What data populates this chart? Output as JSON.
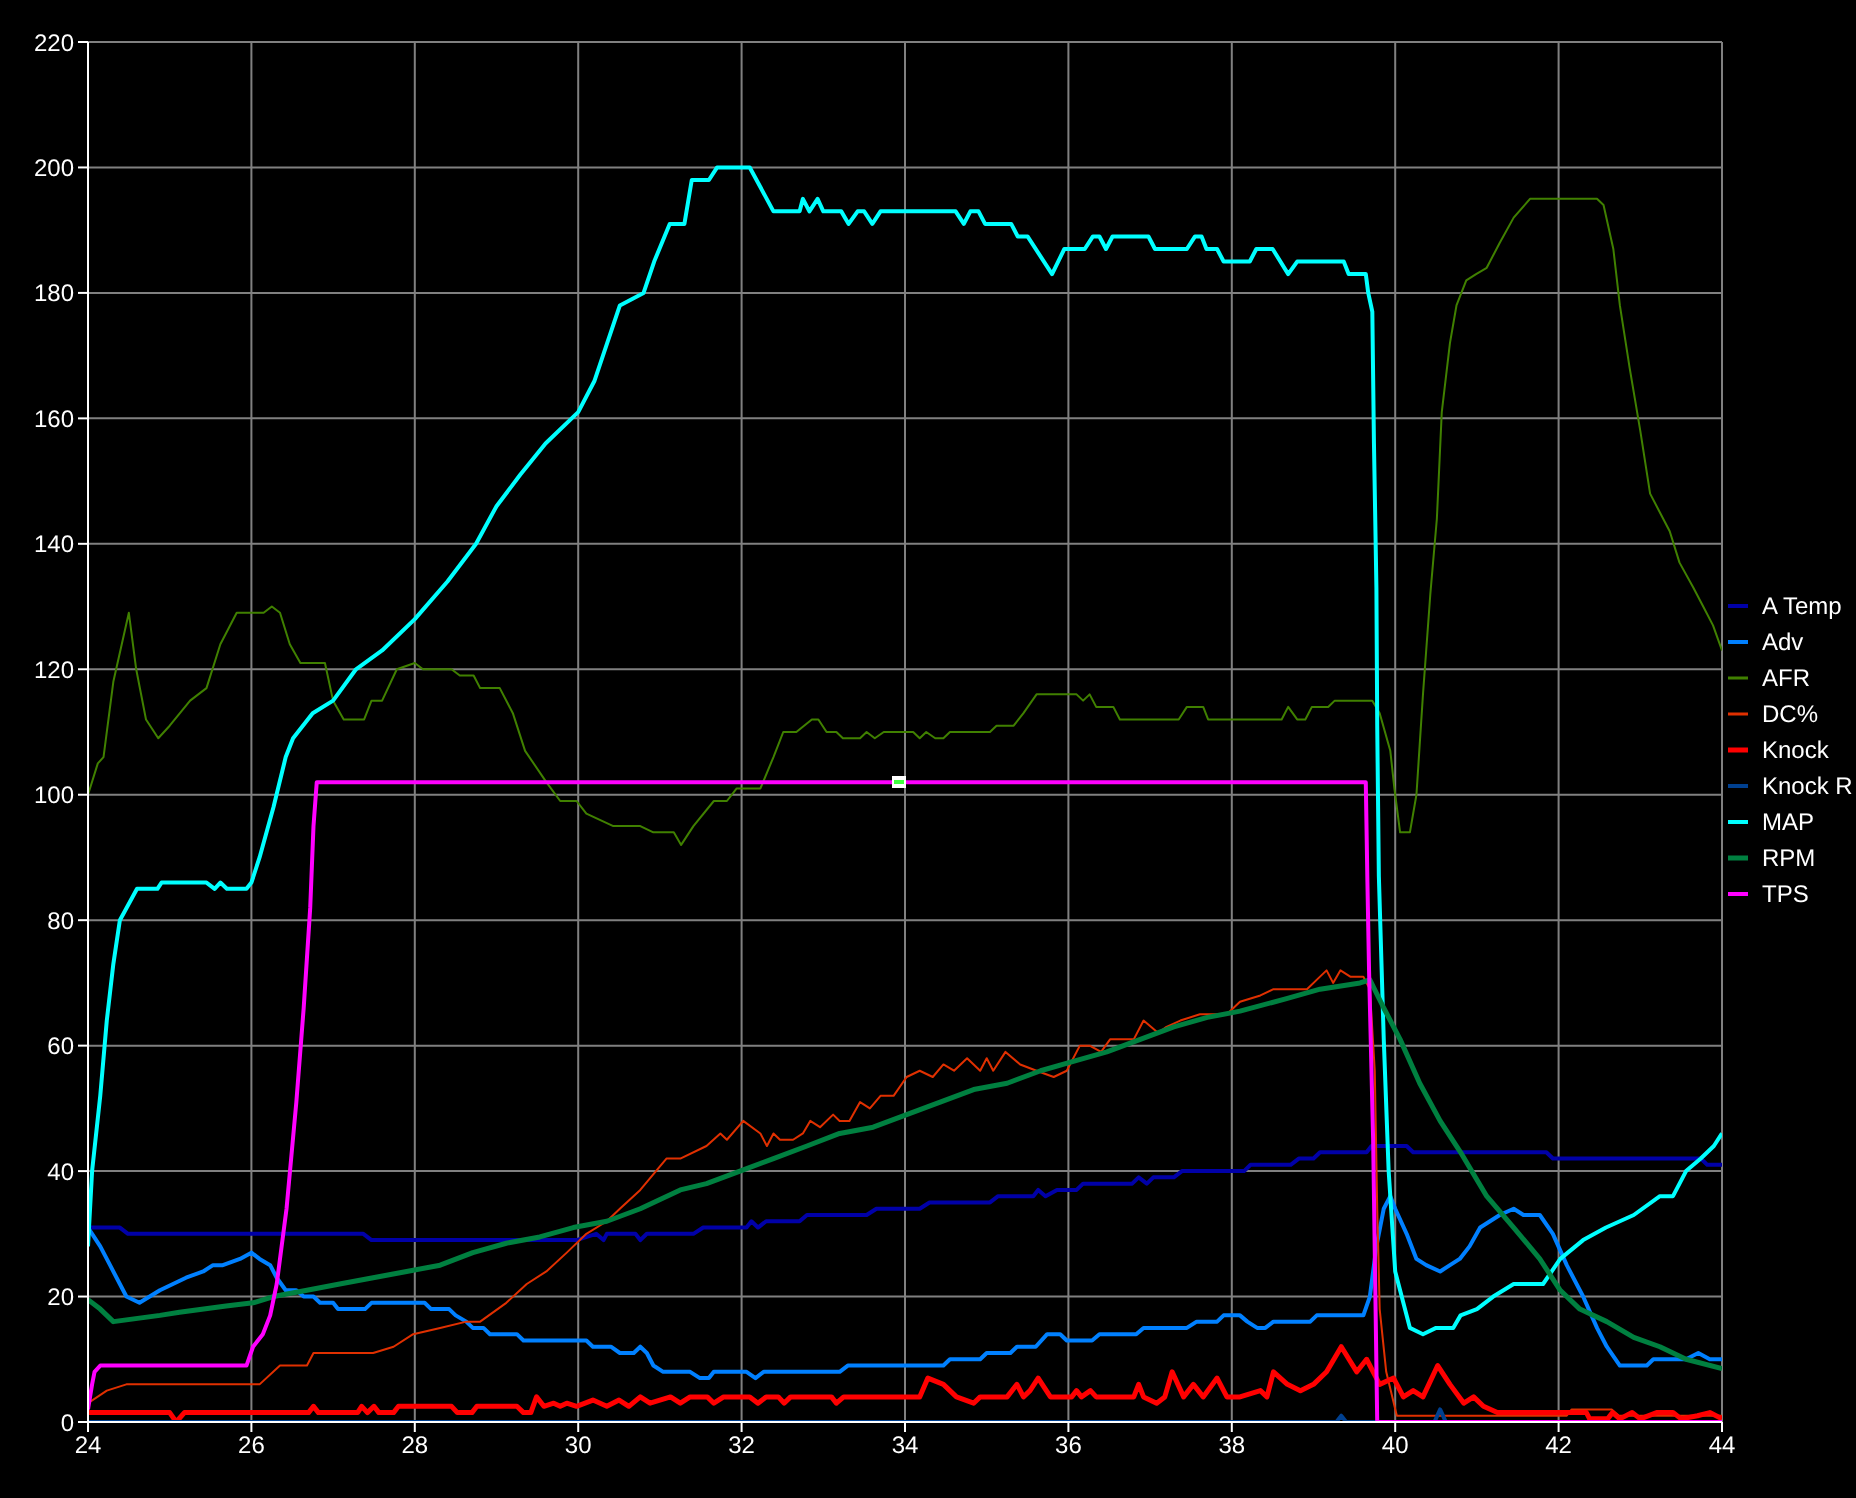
{
  "chart_data": {
    "type": "line",
    "xlim": [
      24,
      44
    ],
    "xticks": [
      24,
      26,
      28,
      30,
      32,
      34,
      36,
      38,
      40,
      42,
      44
    ],
    "ylim": [
      0,
      220
    ],
    "yticks": [
      0,
      20,
      40,
      60,
      80,
      100,
      120,
      140,
      160,
      180,
      200,
      220
    ],
    "grid": true,
    "legend": "right",
    "marker": "none",
    "line_style": "solid",
    "series": [
      {
        "name": "A Temp",
        "color": "#0000a8",
        "x": [
          24,
          24.39,
          24.49,
          27.37,
          27.47,
          29.98,
          30.22,
          30.31,
          30.35,
          30.7,
          30.76,
          30.84,
          31.41,
          31.53,
          32.06,
          32.12,
          32.2,
          32.3,
          32.71,
          32.8,
          33.53,
          33.65,
          34.18,
          34.3,
          35.04,
          35.14,
          35.57,
          35.63,
          35.72,
          35.86,
          36.1,
          36.18,
          36.78,
          36.86,
          36.96,
          37.04,
          37.29,
          37.39,
          38.15,
          38.23,
          38.72,
          38.82,
          39,
          39.08,
          39.65,
          39.71,
          40.14,
          40.22,
          41.85,
          41.93,
          43.74,
          43.82,
          44
        ],
        "values": [
          31,
          31,
          30,
          30,
          29,
          29,
          30,
          29,
          30,
          30,
          29,
          30,
          30,
          31,
          31,
          32,
          31,
          32,
          32,
          33,
          33,
          34,
          34,
          35,
          35,
          36,
          36,
          37,
          36,
          37,
          37,
          38,
          38,
          39,
          38,
          39,
          39,
          40,
          40,
          41,
          41,
          42,
          42,
          43,
          43,
          44,
          44,
          43,
          43,
          42,
          42,
          41,
          41
        ]
      },
      {
        "name": "Adv",
        "color": "#0080ff",
        "x": [
          24,
          24.15,
          24.27,
          24.39,
          24.47,
          24.63,
          24.88,
          25.04,
          25.2,
          25.41,
          25.53,
          25.65,
          25.86,
          26,
          26.1,
          26.23,
          26.31,
          26.42,
          26.55,
          26.64,
          26.76,
          26.84,
          27,
          27.06,
          27.39,
          27.47,
          28.12,
          28.2,
          28.42,
          28.5,
          28.63,
          28.71,
          28.84,
          28.92,
          29.25,
          29.33,
          30.1,
          30.18,
          30.4,
          30.51,
          30.68,
          30.76,
          30.84,
          30.92,
          31.04,
          31.37,
          31.49,
          31.6,
          31.66,
          32.06,
          32.17,
          32.27,
          33.2,
          33.3,
          34.47,
          34.55,
          34.92,
          35,
          35.29,
          35.37,
          35.6,
          35.74,
          35.9,
          35.98,
          36.29,
          36.38,
          36.83,
          36.92,
          37.45,
          37.57,
          37.82,
          37.9,
          38.1,
          38.19,
          38.31,
          38.41,
          38.51,
          38.96,
          39.04,
          39.61,
          39.69,
          39.77,
          39.86,
          39.94,
          40,
          40.14,
          40.26,
          40.38,
          40.55,
          40.67,
          40.79,
          40.91,
          41.04,
          41.28,
          41.45,
          41.57,
          41.77,
          41.93,
          42.1,
          42.3,
          42.47,
          42.59,
          42.75,
          43.08,
          43.16,
          43.56,
          43.71,
          43.85,
          44
        ],
        "values": [
          31,
          28,
          25,
          22,
          20,
          19,
          21,
          22,
          23,
          24,
          25,
          25,
          26,
          27,
          26,
          25,
          23,
          21,
          21,
          20,
          20,
          19,
          19,
          18,
          18,
          19,
          19,
          18,
          18,
          17,
          16,
          15,
          15,
          14,
          14,
          13,
          13,
          12,
          12,
          11,
          11,
          12,
          11,
          9,
          8,
          8,
          7,
          7,
          8,
          8,
          7,
          8,
          8,
          9,
          9,
          10,
          10,
          11,
          11,
          12,
          12,
          14,
          14,
          13,
          13,
          14,
          14,
          15,
          15,
          16,
          16,
          17,
          17,
          16,
          15,
          15,
          16,
          16,
          17,
          17,
          20,
          28,
          34,
          36,
          34,
          30,
          26,
          25,
          24,
          25,
          26,
          28,
          31,
          33,
          34,
          33,
          33,
          30,
          25,
          20,
          15,
          12,
          9,
          9,
          10,
          10,
          11,
          10,
          10
        ]
      },
      {
        "name": "AFR",
        "color": "#408000",
        "x": [
          24,
          24.12,
          24.19,
          24.31,
          24.5,
          24.59,
          24.71,
          24.86,
          25,
          25.25,
          25.45,
          25.62,
          25.82,
          26.15,
          26.25,
          26.35,
          26.47,
          26.6,
          26.9,
          27,
          27.13,
          27.38,
          27.47,
          27.6,
          27.78,
          28,
          28.1,
          28.45,
          28.55,
          28.72,
          28.8,
          29.04,
          29.2,
          29.35,
          29.61,
          29.78,
          29.98,
          30.1,
          30.43,
          30.76,
          30.92,
          31.17,
          31.26,
          31.41,
          31.66,
          31.82,
          31.94,
          32.23,
          32.39,
          32.51,
          32.67,
          32.86,
          32.94,
          33.04,
          33.16,
          33.24,
          33.45,
          33.53,
          33.63,
          33.74,
          34.1,
          34.18,
          34.26,
          34.37,
          34.47,
          34.55,
          35.04,
          35.12,
          35.33,
          35.45,
          35.61,
          36.1,
          36.18,
          36.26,
          36.34,
          36.55,
          36.63,
          37.35,
          37.45,
          37.65,
          37.71,
          38.61,
          38.69,
          38.8,
          38.9,
          38.98,
          39.18,
          39.26,
          39.72,
          39.81,
          39.94,
          39.99,
          40.06,
          40.18,
          40.26,
          40.34,
          40.43,
          40.51,
          40.57,
          40.67,
          40.75,
          40.87,
          40.99,
          41.12,
          41.28,
          41.45,
          41.65,
          42.47,
          42.55,
          42.67,
          42.75,
          42.87,
          43,
          43.12,
          43.24,
          43.36,
          43.48,
          43.65,
          43.77,
          43.89,
          44
        ],
        "values": [
          100,
          105,
          106,
          118,
          129,
          120,
          112,
          109,
          111,
          115,
          117,
          124,
          129,
          129,
          130,
          129,
          124,
          121,
          121,
          115,
          112,
          112,
          115,
          115,
          120,
          121,
          120,
          120,
          119,
          119,
          117,
          117,
          113,
          107,
          102,
          99,
          99,
          97,
          95,
          95,
          94,
          94,
          92,
          95,
          99,
          99,
          101,
          101,
          106,
          110,
          110,
          112,
          112,
          110,
          110,
          109,
          109,
          110,
          109,
          110,
          110,
          109,
          110,
          109,
          109,
          110,
          110,
          111,
          111,
          113,
          116,
          116,
          115,
          116,
          114,
          114,
          112,
          112,
          114,
          114,
          112,
          112,
          114,
          112,
          112,
          114,
          114,
          115,
          115,
          113,
          107,
          101,
          94,
          94,
          100,
          116,
          132,
          144,
          161,
          172,
          178,
          182,
          183,
          184,
          188,
          192,
          195,
          195,
          194,
          187,
          178,
          168,
          158,
          148,
          145,
          142,
          137,
          133,
          130,
          127,
          123
        ]
      },
      {
        "name": "DC%",
        "color": "#e03000",
        "x": [
          24,
          24.23,
          24.47,
          24.7,
          24.86,
          25.6,
          26.1,
          26.35,
          26.68,
          26.76,
          27.49,
          27.74,
          27.98,
          28.31,
          28.63,
          28.8,
          29.12,
          29.37,
          29.61,
          29.86,
          30.1,
          30.35,
          30.51,
          30.76,
          31.08,
          31.25,
          31.57,
          31.74,
          31.82,
          32.02,
          32.23,
          32.31,
          32.39,
          32.47,
          32.63,
          32.75,
          32.84,
          32.96,
          33.12,
          33.2,
          33.32,
          33.45,
          33.57,
          33.7,
          33.86,
          34.02,
          34.18,
          34.34,
          34.47,
          34.6,
          34.76,
          34.92,
          35,
          35.08,
          35.23,
          35.41,
          35.61,
          35.82,
          35.98,
          36.14,
          36.26,
          36.4,
          36.51,
          36.8,
          36.92,
          37.1,
          37.2,
          37.37,
          37.61,
          37.94,
          38.1,
          38.35,
          38.51,
          38.92,
          39.08,
          39.16,
          39.24,
          39.33,
          39.45,
          39.61,
          39.69,
          39.75,
          39.78,
          39.81,
          39.89,
          40.02,
          42.1,
          42.16,
          42.65,
          42.74,
          44
        ],
        "values": [
          3,
          5,
          6,
          6,
          6,
          6,
          6,
          9,
          9,
          11,
          11,
          12,
          14,
          15,
          16,
          16,
          19,
          22,
          24,
          27,
          30,
          32,
          34,
          37,
          42,
          42,
          44,
          46,
          45,
          48,
          46,
          44,
          46,
          45,
          45,
          46,
          48,
          47,
          49,
          48,
          48,
          51,
          50,
          52,
          52,
          55,
          56,
          55,
          57,
          56,
          58,
          56,
          58,
          56,
          59,
          57,
          56,
          55,
          56,
          60,
          60,
          59,
          61,
          61,
          64,
          62,
          63,
          64,
          65,
          65,
          67,
          68,
          69,
          69,
          71,
          72,
          70,
          72,
          71,
          71,
          69,
          56,
          34,
          18,
          8,
          1,
          1,
          2,
          2,
          1,
          1
        ]
      },
      {
        "name": "Knock",
        "color": "#ff0000",
        "x": [
          24,
          25,
          25.08,
          25.18,
          26.7,
          26.76,
          26.82,
          27.3,
          27.35,
          27.42,
          27.5,
          27.56,
          27.74,
          27.8,
          28.45,
          28.52,
          28.7,
          28.76,
          29.25,
          29.33,
          29.42,
          29.49,
          29.58,
          29.7,
          29.78,
          29.86,
          29.98,
          30.18,
          30.35,
          30.5,
          30.62,
          30.76,
          30.88,
          31.13,
          31.25,
          31.37,
          31.58,
          31.66,
          31.78,
          32.1,
          32.2,
          32.3,
          32.45,
          32.52,
          32.6,
          33.1,
          33.16,
          33.25,
          34.18,
          34.28,
          34.47,
          34.63,
          34.84,
          34.92,
          35.25,
          35.37,
          35.45,
          35.53,
          35.63,
          35.78,
          36.04,
          36.1,
          36.16,
          36.27,
          36.34,
          36.8,
          36.86,
          36.92,
          37.08,
          37.18,
          37.27,
          37.41,
          37.53,
          37.65,
          37.82,
          37.94,
          38.1,
          38.35,
          38.43,
          38.51,
          38.68,
          38.84,
          39,
          39.16,
          39.34,
          39.53,
          39.65,
          39.81,
          39.98,
          40.1,
          40.22,
          40.34,
          40.52,
          40.67,
          40.84,
          40.96,
          41.08,
          41.25,
          42.34,
          42.38,
          42.6,
          42.66,
          42.75,
          42.9,
          43,
          43.2,
          43.4,
          43.5,
          43.7,
          43.85,
          44
        ],
        "values": [
          1.5,
          1.5,
          0,
          1.5,
          1.5,
          2.5,
          1.5,
          1.5,
          2.5,
          1.5,
          2.5,
          1.5,
          1.5,
          2.5,
          2.5,
          1.5,
          1.5,
          2.5,
          2.5,
          1.5,
          1.5,
          4,
          2.5,
          3,
          2.5,
          3,
          2.5,
          3.5,
          2.5,
          3.5,
          2.5,
          4,
          3,
          4,
          3,
          4,
          4,
          3,
          4,
          4,
          3,
          4,
          4,
          3,
          4,
          4,
          3,
          4,
          4,
          7,
          6,
          4,
          3,
          4,
          4,
          6,
          4,
          5,
          7,
          4,
          4,
          5,
          4,
          5,
          4,
          4,
          6,
          4,
          3,
          4,
          8,
          4,
          6,
          4,
          7,
          4,
          4,
          5,
          4,
          8,
          6,
          5,
          6,
          8,
          12,
          8,
          10,
          6,
          7,
          4,
          5,
          4,
          9,
          6,
          3,
          4,
          2.5,
          1.5,
          1.5,
          0.5,
          0.5,
          1.5,
          0.5,
          1.5,
          0.5,
          1.5,
          1.5,
          0.5,
          1,
          1.5,
          0.5
        ]
      },
      {
        "name": "Knock R",
        "color": "#004090",
        "x": [
          24,
          39.28,
          39.34,
          39.4,
          40.48,
          40.55,
          40.62,
          44
        ],
        "values": [
          0,
          0,
          1,
          0,
          0,
          2,
          0,
          0
        ]
      },
      {
        "name": "MAP",
        "color": "#00ffff",
        "x": [
          24,
          24.05,
          24.15,
          24.23,
          24.31,
          24.39,
          24.6,
          24.85,
          24.9,
          25.45,
          25.55,
          25.62,
          25.7,
          25.94,
          26,
          26.1,
          26.27,
          26.42,
          26.51,
          26.75,
          27,
          27.28,
          27.6,
          28,
          28.4,
          28.75,
          29,
          29.29,
          29.6,
          30,
          30.2,
          30.51,
          30.8,
          30.93,
          31.12,
          31.3,
          31.39,
          31.6,
          31.7,
          32.1,
          32.39,
          32.71,
          32.75,
          32.83,
          32.93,
          33,
          33.22,
          33.31,
          33.42,
          33.5,
          33.6,
          33.7,
          34.62,
          34.72,
          34.8,
          34.9,
          34.98,
          35.3,
          35.38,
          35.5,
          35.8,
          35.95,
          36.2,
          36.3,
          36.38,
          36.46,
          36.54,
          36.98,
          37.06,
          37.45,
          37.55,
          37.63,
          37.69,
          37.82,
          37.9,
          38.22,
          38.3,
          38.5,
          38.69,
          38.8,
          39.37,
          39.43,
          39.64,
          39.67,
          39.72,
          39.74,
          39.77,
          39.78,
          39.8,
          39.86,
          39.92,
          40,
          40.18,
          40.34,
          40.5,
          40.71,
          40.8,
          41,
          41.2,
          41.45,
          41.81,
          42.02,
          42.3,
          42.58,
          42.92,
          43.24,
          43.4,
          43.56,
          43.74,
          43.9,
          44
        ],
        "values": [
          28,
          40,
          52,
          64,
          73,
          80,
          85,
          85,
          86,
          86,
          85,
          86,
          85,
          85,
          86,
          90,
          98,
          106,
          109,
          113,
          115,
          120,
          123,
          128,
          134,
          140,
          146,
          151,
          156,
          161,
          166,
          178,
          180,
          185,
          191,
          191,
          198,
          198,
          200,
          200,
          193,
          193,
          195,
          193,
          195,
          193,
          193,
          191,
          193,
          193,
          191,
          193,
          193,
          191,
          193,
          193,
          191,
          191,
          189,
          189,
          183,
          187,
          187,
          189,
          189,
          187,
          189,
          189,
          187,
          187,
          189,
          189,
          187,
          187,
          185,
          185,
          187,
          187,
          183,
          185,
          185,
          183,
          183,
          180,
          177,
          156,
          133,
          111,
          87,
          61,
          40,
          24,
          15,
          14,
          15,
          15,
          17,
          18,
          20,
          22,
          22,
          26,
          29,
          31,
          33,
          36,
          36,
          40,
          42,
          44,
          46
        ]
      },
      {
        "name": "RPM",
        "color": "#008040",
        "x": [
          24,
          24.15,
          24.31,
          24.88,
          25.12,
          25.69,
          26.02,
          26.27,
          26.68,
          27.08,
          27.49,
          27.9,
          28.31,
          28.71,
          29.12,
          29.53,
          29.94,
          30.35,
          30.76,
          31.25,
          31.57,
          31.98,
          32.39,
          32.8,
          33.2,
          33.61,
          34.02,
          34.43,
          34.84,
          35.25,
          35.66,
          36.06,
          36.47,
          36.88,
          37.29,
          37.7,
          38.1,
          38.67,
          39.08,
          39.57,
          39.69,
          39.86,
          40.06,
          40.3,
          40.55,
          40.8,
          41.12,
          41.45,
          41.77,
          42.02,
          42.26,
          42.59,
          42.92,
          43.24,
          43.56,
          44
        ],
        "values": [
          19.5,
          18,
          16,
          17,
          17.5,
          18.5,
          19,
          20,
          21,
          22,
          23,
          24,
          25,
          27,
          28.5,
          29.5,
          31,
          32,
          34,
          37,
          38,
          40,
          42,
          44,
          46,
          47,
          49,
          51,
          53,
          54,
          56,
          57.5,
          59,
          61,
          63,
          64.5,
          65.5,
          67.5,
          69,
          70,
          70.5,
          66,
          61,
          54,
          48,
          43,
          36,
          31,
          26,
          21,
          18,
          16,
          13.5,
          12,
          10,
          8.5
        ]
      },
      {
        "name": "TPS",
        "color": "#ff00ff",
        "x": [
          24,
          24.05,
          24.08,
          24.15,
          25.94,
          26.02,
          26.14,
          26.23,
          26.31,
          26.43,
          26.55,
          26.64,
          26.72,
          26.76,
          26.8,
          39.64,
          39.66,
          39.68,
          39.73,
          39.78,
          44
        ],
        "values": [
          2,
          6,
          8,
          9,
          9,
          12,
          14,
          17,
          22,
          34,
          51,
          66,
          82,
          95,
          102,
          102,
          86,
          72,
          45,
          0,
          0
        ]
      }
    ]
  }
}
